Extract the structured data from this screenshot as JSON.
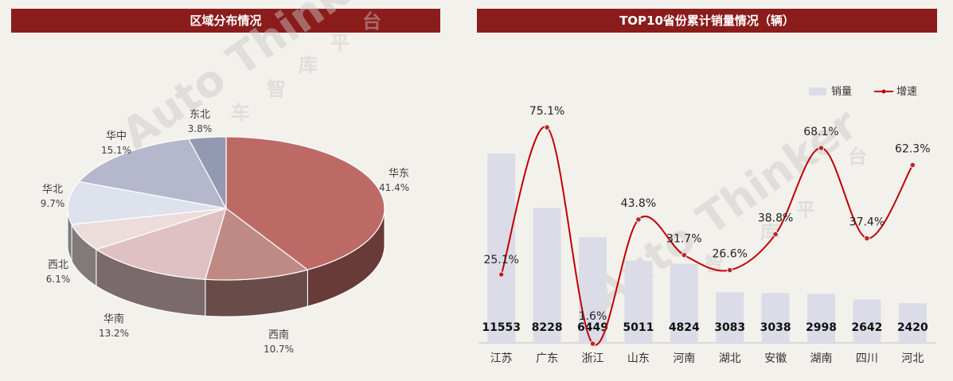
{
  "left_panel": {
    "title": "区域分布情况"
  },
  "right_panel": {
    "title": "TOP10省份累计销量情况（辆）",
    "legend": {
      "bar": "销量",
      "line": "增速"
    }
  },
  "watermark": {
    "brand": "Auto Thinker",
    "chars": [
      "车",
      "智",
      "库",
      "平",
      "台"
    ]
  },
  "colors": {
    "header_bg": "#8b1c1c",
    "line": "#c00000",
    "bar": "#dcdce8"
  },
  "chart_data": [
    {
      "type": "pie",
      "title": "区域分布情况",
      "slices": [
        {
          "label": "华东",
          "value": 41.4,
          "pct_label": "41.4%",
          "color": "#bd6a66"
        },
        {
          "label": "西南",
          "value": 10.7,
          "pct_label": "10.7%",
          "color": "#bf8a84"
        },
        {
          "label": "华南",
          "value": 13.2,
          "pct_label": "13.2%",
          "color": "#e0c1c3"
        },
        {
          "label": "西北",
          "value": 6.1,
          "pct_label": "6.1%",
          "color": "#eddcdc"
        },
        {
          "label": "华北",
          "value": 9.7,
          "pct_label": "9.7%",
          "color": "#dde2ec"
        },
        {
          "label": "华中",
          "value": 15.1,
          "pct_label": "15.1%",
          "color": "#b5b7cc"
        },
        {
          "label": "东北",
          "value": 3.8,
          "pct_label": "3.8%",
          "color": "#9499b2"
        }
      ]
    },
    {
      "type": "bar",
      "title": "TOP10省份累计销量情况（辆）",
      "categories": [
        "江苏",
        "广东",
        "浙江",
        "山东",
        "河南",
        "湖北",
        "安徽",
        "湖南",
        "四川",
        "河北"
      ],
      "series": [
        {
          "name": "销量",
          "type": "bar",
          "values": [
            11553,
            8228,
            6449,
            5011,
            4824,
            3083,
            3038,
            2998,
            2642,
            2420
          ]
        },
        {
          "name": "增速",
          "type": "line",
          "values": [
            25.1,
            75.1,
            1.6,
            43.8,
            31.7,
            26.6,
            38.8,
            68.1,
            37.4,
            62.3
          ],
          "labels": [
            "25.1%",
            "75.1%",
            "1.6%",
            "43.8%",
            "31.7%",
            "26.6%",
            "38.8%",
            "68.1%",
            "37.4%",
            "62.3%"
          ]
        }
      ]
    }
  ]
}
